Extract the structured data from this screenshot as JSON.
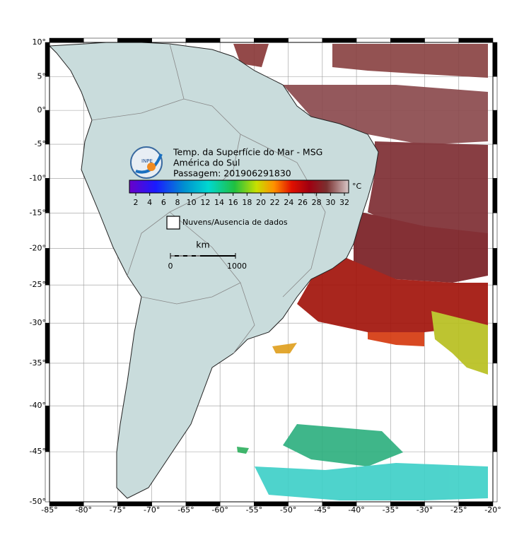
{
  "map": {
    "title": [
      "Temp. da Superfície do Mar - MSG",
      "América do Sul",
      "Passagem: 201906291830"
    ],
    "logo": "INPE",
    "xlim": [
      -85,
      -20
    ],
    "ylim": [
      -50,
      10
    ],
    "xticks": [
      {
        "value": -85,
        "label": "-85°"
      },
      {
        "value": -80,
        "label": "-80°"
      },
      {
        "value": -75,
        "label": "-75°"
      },
      {
        "value": -70,
        "label": "-70°"
      },
      {
        "value": -65,
        "label": "-65°"
      },
      {
        "value": -60,
        "label": "-60°"
      },
      {
        "value": -55,
        "label": "-55°"
      },
      {
        "value": -50,
        "label": "-50°"
      },
      {
        "value": -45,
        "label": "-45°"
      },
      {
        "value": -40,
        "label": "-40°"
      },
      {
        "value": -35,
        "label": "-35°"
      },
      {
        "value": -30,
        "label": "-30°"
      },
      {
        "value": -25,
        "label": "-25°"
      },
      {
        "value": -20,
        "label": "-20°"
      }
    ],
    "yticks": [
      {
        "value": 10,
        "label": "10°"
      },
      {
        "value": 5,
        "label": "5°"
      },
      {
        "value": 0,
        "label": "0°"
      },
      {
        "value": -5,
        "label": "-5°"
      },
      {
        "value": -10,
        "label": "-10°"
      },
      {
        "value": -15,
        "label": "-15°"
      },
      {
        "value": -20,
        "label": "-20°"
      },
      {
        "value": -25,
        "label": "-25°"
      },
      {
        "value": -30,
        "label": "-30°"
      },
      {
        "value": -35,
        "label": "-35°"
      },
      {
        "value": -40,
        "label": "-40°"
      },
      {
        "value": -45,
        "label": "-45°"
      },
      {
        "value": -50,
        "label": "-50°"
      }
    ],
    "projection": "mercator",
    "colorbar": {
      "ticks": [
        2,
        4,
        6,
        8,
        10,
        12,
        14,
        16,
        18,
        20,
        22,
        24,
        26,
        28,
        30,
        32
      ],
      "unit": "°C"
    },
    "legend": "Nuvens/Ausencia de dados",
    "scale_bar": {
      "unit": "km",
      "labels": [
        "0",
        "1000"
      ]
    }
  }
}
